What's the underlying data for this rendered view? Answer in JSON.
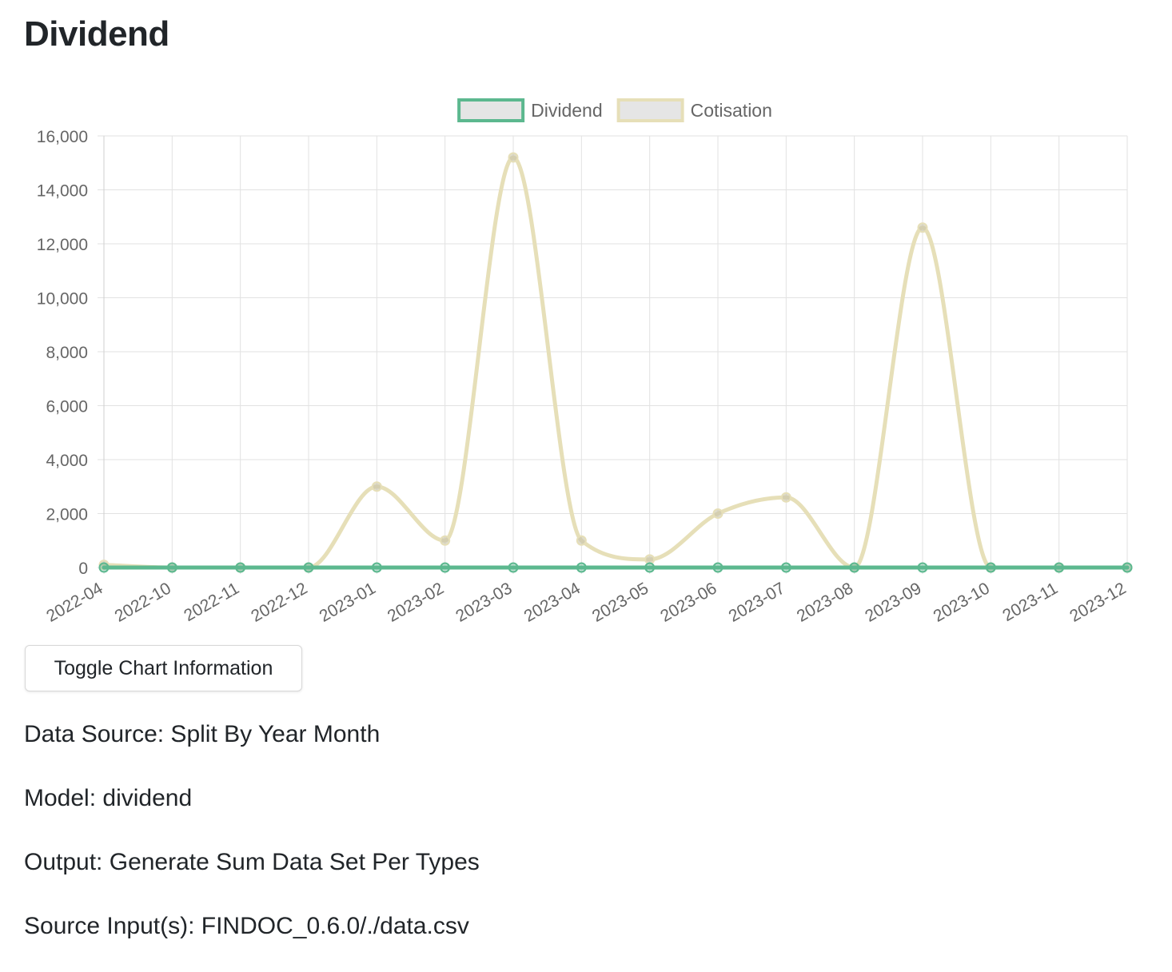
{
  "page": {
    "title": "Dividend"
  },
  "chart_data": {
    "type": "line",
    "categories": [
      "2022-04",
      "2022-10",
      "2022-11",
      "2022-12",
      "2023-01",
      "2023-02",
      "2023-03",
      "2023-04",
      "2023-05",
      "2023-06",
      "2023-07",
      "2023-08",
      "2023-09",
      "2023-10",
      "2023-11",
      "2023-12"
    ],
    "series": [
      {
        "name": "Dividend",
        "color": "#5cb88f",
        "values": [
          0,
          0,
          0,
          0,
          0,
          0,
          0,
          0,
          0,
          0,
          0,
          0,
          0,
          0,
          0,
          0
        ]
      },
      {
        "name": "Cotisation",
        "color": "#e6dfb8",
        "values": [
          100,
          0,
          0,
          0,
          3000,
          1000,
          15200,
          1000,
          300,
          2000,
          2600,
          0,
          12600,
          0,
          0,
          0
        ]
      }
    ],
    "ylim": [
      0,
      16000
    ],
    "yticks": [
      0,
      2000,
      4000,
      6000,
      8000,
      10000,
      12000,
      14000,
      16000
    ],
    "ytick_labels": [
      "0",
      "2,000",
      "4,000",
      "6,000",
      "8,000",
      "10,000",
      "12,000",
      "14,000",
      "16,000"
    ],
    "grid": true,
    "legend_position": "top-center",
    "xlabel": "",
    "ylabel": ""
  },
  "controls": {
    "toggle_label": "Toggle Chart Information"
  },
  "info": {
    "data_source": "Data Source: Split By Year Month",
    "model": "Model: dividend",
    "output": "Output: Generate Sum Data Set Per Types",
    "source_inputs": "Source Input(s): FINDOC_0.6.0/./data.csv"
  }
}
